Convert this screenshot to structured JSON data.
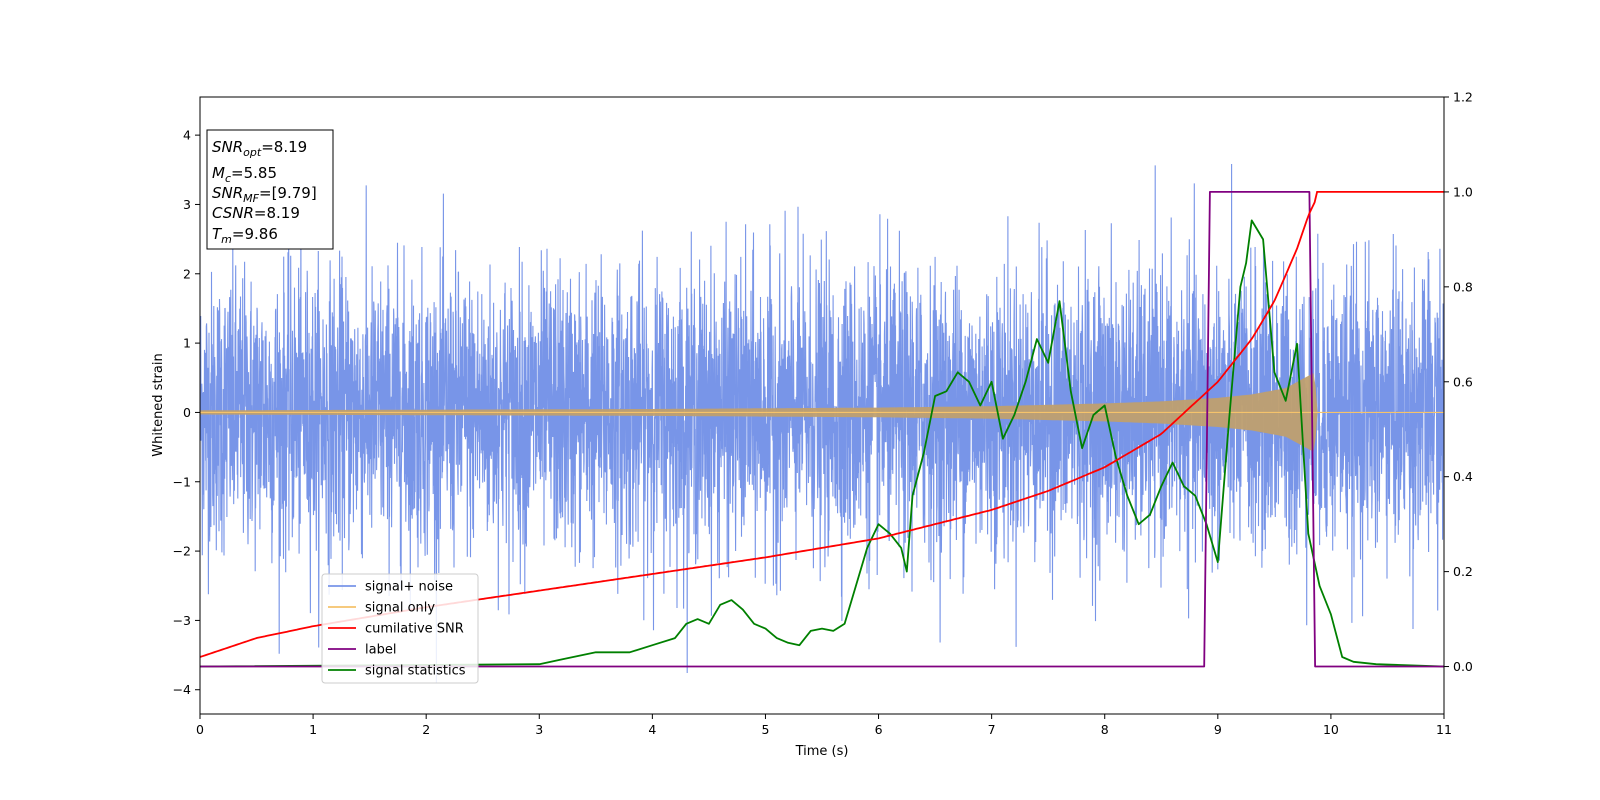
{
  "chart_data": {
    "type": "line",
    "xlabel": "Time (s)",
    "ylabel": "Whitened strain",
    "xlim": [
      0,
      11
    ],
    "ylim_left": [
      -4.35,
      4.55
    ],
    "ylim_right": [
      -0.1,
      1.2
    ],
    "x_ticks": [
      0,
      1,
      2,
      3,
      4,
      5,
      6,
      7,
      8,
      9,
      10,
      11
    ],
    "x_tick_labels": [
      "0",
      "1",
      "2",
      "3",
      "4",
      "5",
      "6",
      "7",
      "8",
      "9",
      "10",
      "11"
    ],
    "y_left_ticks": [
      -4,
      -3,
      -2,
      -1,
      0,
      1,
      2,
      3,
      4
    ],
    "y_left_tick_labels": [
      "−4",
      "−3",
      "−2",
      "−1",
      "0",
      "1",
      "2",
      "3",
      "4"
    ],
    "y_right_ticks": [
      0.0,
      0.2,
      0.4,
      0.6,
      0.8,
      1.0,
      1.2
    ],
    "y_right_tick_labels": [
      "0.0",
      "0.2",
      "0.4",
      "0.6",
      "0.8",
      "1.0",
      "1.2"
    ],
    "grid": false,
    "legend_position": "lower-left",
    "info_box": [
      {
        "sym": "SNR",
        "sub": "opt",
        "val": "=8.19"
      },
      {
        "sym": "M",
        "sub": "c",
        "val": "=5.85"
      },
      {
        "sym": "SNR",
        "sub": "MF",
        "val": "=[9.79]"
      },
      {
        "sym": "CSNR",
        "sub": "",
        "val": "=8.19"
      },
      {
        "sym": "T",
        "sub": "m",
        "val": "=9.86"
      }
    ],
    "series": [
      {
        "name": "signal+ noise",
        "axis": "left",
        "color": "#7895e8",
        "noise_amplitude_range": [
          -3.9,
          4.2
        ],
        "description_values": {
          "typical_abs_max": 2.5
        }
      },
      {
        "name": "signal only",
        "axis": "left",
        "color": "#f5c36b",
        "envelope_x": [
          0,
          2,
          4,
          6,
          7,
          8,
          8.5,
          9,
          9.3,
          9.6,
          9.86,
          9.87,
          11
        ],
        "envelope_y": [
          0.03,
          0.04,
          0.05,
          0.07,
          0.09,
          0.13,
          0.16,
          0.21,
          0.26,
          0.35,
          0.58,
          0.0,
          0.0
        ]
      },
      {
        "name": "cumilative SNR",
        "axis": "right",
        "color": "#ff0000",
        "x": [
          0,
          0.5,
          1,
          2,
          3,
          4,
          5,
          6,
          7,
          7.5,
          8,
          8.5,
          9,
          9.3,
          9.5,
          9.7,
          9.8,
          9.86,
          9.87,
          11
        ],
        "y": [
          0.02,
          0.06,
          0.085,
          0.125,
          0.16,
          0.195,
          0.23,
          0.27,
          0.33,
          0.37,
          0.42,
          0.49,
          0.6,
          0.69,
          0.77,
          0.88,
          0.95,
          0.98,
          1.0,
          1.0
        ]
      },
      {
        "name": "label",
        "axis": "right",
        "color": "#800080",
        "x": [
          0,
          8.88,
          8.93,
          9.81,
          9.86,
          11
        ],
        "y": [
          0,
          0,
          1,
          1,
          0,
          0
        ]
      },
      {
        "name": "signal statistics",
        "axis": "right",
        "color": "#008000",
        "x": [
          0,
          3.0,
          3.2,
          3.5,
          3.8,
          4.0,
          4.2,
          4.3,
          4.4,
          4.5,
          4.6,
          4.7,
          4.8,
          4.9,
          5.0,
          5.1,
          5.2,
          5.3,
          5.4,
          5.5,
          5.6,
          5.7,
          5.8,
          5.9,
          6.0,
          6.1,
          6.2,
          6.25,
          6.3,
          6.4,
          6.5,
          6.6,
          6.7,
          6.8,
          6.9,
          7.0,
          7.1,
          7.2,
          7.3,
          7.4,
          7.5,
          7.6,
          7.7,
          7.8,
          7.9,
          8.0,
          8.1,
          8.2,
          8.3,
          8.4,
          8.5,
          8.6,
          8.7,
          8.8,
          8.9,
          9.0,
          9.1,
          9.2,
          9.25,
          9.3,
          9.4,
          9.5,
          9.6,
          9.7,
          9.8,
          9.9,
          10.0,
          10.1,
          10.2,
          10.4,
          11
        ],
        "y": [
          0.0,
          0.005,
          0.015,
          0.03,
          0.03,
          0.045,
          0.06,
          0.09,
          0.1,
          0.09,
          0.13,
          0.14,
          0.12,
          0.09,
          0.08,
          0.06,
          0.05,
          0.045,
          0.075,
          0.08,
          0.075,
          0.09,
          0.17,
          0.25,
          0.3,
          0.28,
          0.25,
          0.2,
          0.36,
          0.45,
          0.57,
          0.58,
          0.62,
          0.6,
          0.55,
          0.6,
          0.48,
          0.53,
          0.6,
          0.69,
          0.64,
          0.77,
          0.58,
          0.46,
          0.53,
          0.55,
          0.44,
          0.36,
          0.3,
          0.32,
          0.38,
          0.43,
          0.38,
          0.36,
          0.3,
          0.22,
          0.52,
          0.8,
          0.85,
          0.94,
          0.9,
          0.62,
          0.56,
          0.68,
          0.28,
          0.17,
          0.11,
          0.02,
          0.01,
          0.005,
          0.0
        ]
      }
    ]
  }
}
